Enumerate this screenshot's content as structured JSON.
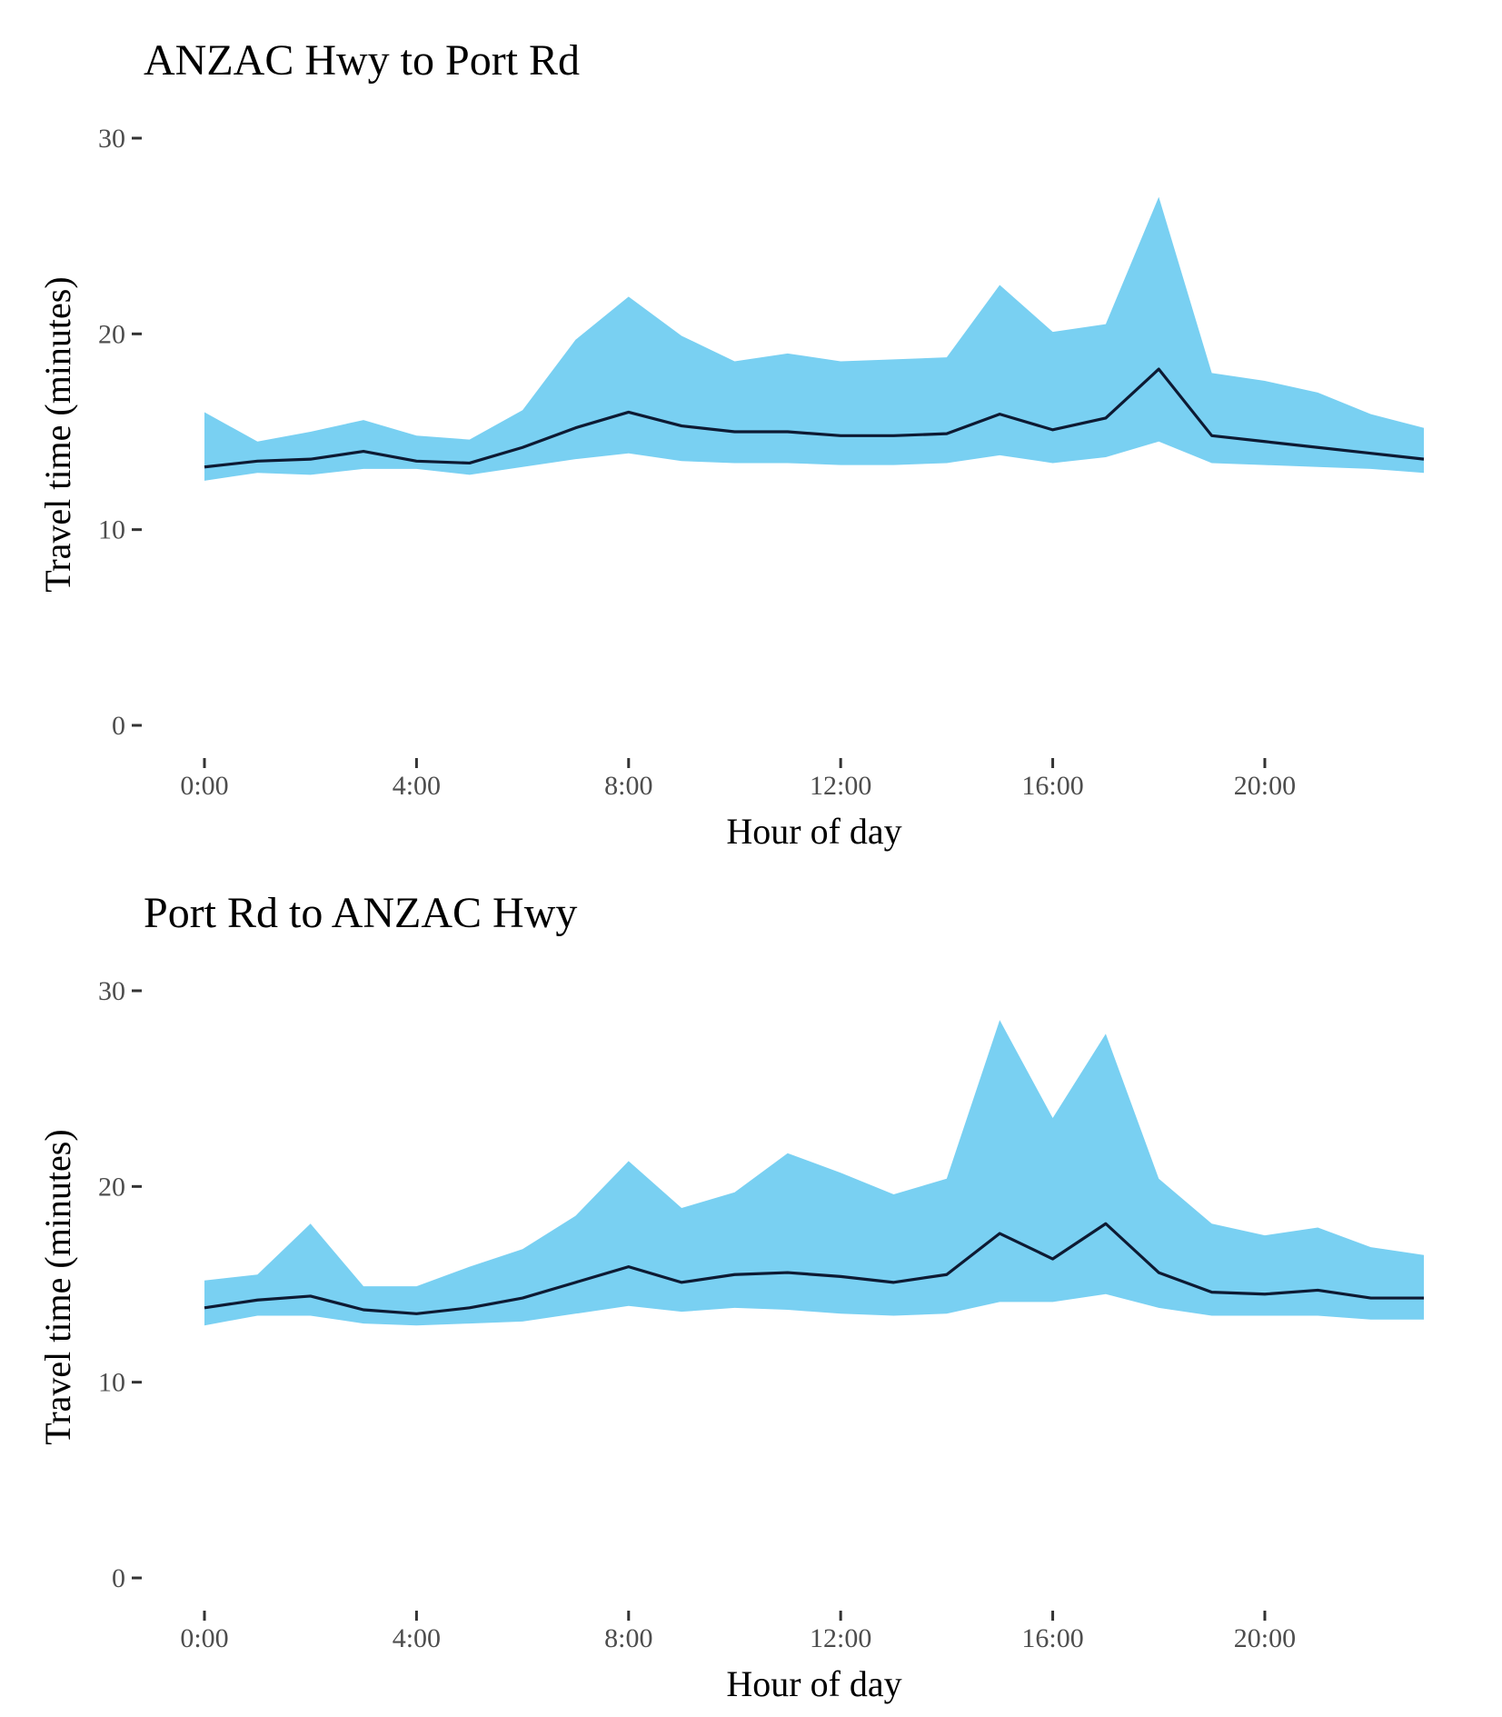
{
  "colors": {
    "band": "#79d0f2",
    "line": "#0d1a33",
    "text": "#000000",
    "tick_text": "#4d4d4d",
    "background": "#ffffff"
  },
  "chart_data": [
    {
      "type": "area",
      "title": "ANZAC Hwy to Port Rd",
      "xlabel": "Hour of day",
      "ylabel": "Travel time (minutes)",
      "x": [
        0,
        1,
        2,
        3,
        4,
        5,
        6,
        7,
        8,
        9,
        10,
        11,
        12,
        13,
        14,
        15,
        16,
        17,
        18,
        19,
        20,
        21,
        22,
        23
      ],
      "x_ticks": [
        0,
        4,
        8,
        12,
        16,
        20
      ],
      "x_tick_labels": [
        "0:00",
        "4:00",
        "8:00",
        "12:00",
        "16:00",
        "20:00"
      ],
      "xlim": [
        0,
        23
      ],
      "y_ticks": [
        0,
        10,
        20,
        30
      ],
      "y_tick_labels": [
        "0",
        "10",
        "20",
        "30"
      ],
      "ylim": [
        0,
        30
      ],
      "grid": false,
      "series": [
        {
          "role": "band_upper",
          "values": [
            16.0,
            14.5,
            15.0,
            15.6,
            14.8,
            14.6,
            16.1,
            19.7,
            21.9,
            19.9,
            18.6,
            19.0,
            18.6,
            18.7,
            18.8,
            22.5,
            20.1,
            20.5,
            27.0,
            18.0,
            17.6,
            17.0,
            15.9,
            15.2
          ]
        },
        {
          "role": "line",
          "values": [
            13.2,
            13.5,
            13.6,
            14.0,
            13.5,
            13.4,
            14.2,
            15.2,
            16.0,
            15.3,
            15.0,
            15.0,
            14.8,
            14.8,
            14.9,
            15.9,
            15.1,
            15.7,
            18.2,
            14.8,
            14.5,
            14.2,
            13.9,
            13.6
          ]
        },
        {
          "role": "band_lower",
          "values": [
            12.5,
            12.9,
            12.8,
            13.1,
            13.1,
            12.8,
            13.2,
            13.6,
            13.9,
            13.5,
            13.4,
            13.4,
            13.3,
            13.3,
            13.4,
            13.8,
            13.4,
            13.7,
            14.5,
            13.4,
            13.3,
            13.2,
            13.1,
            12.9
          ]
        }
      ]
    },
    {
      "type": "area",
      "title": "Port Rd to ANZAC Hwy",
      "xlabel": "Hour of day",
      "ylabel": "Travel time (minutes)",
      "x": [
        0,
        1,
        2,
        3,
        4,
        5,
        6,
        7,
        8,
        9,
        10,
        11,
        12,
        13,
        14,
        15,
        16,
        17,
        18,
        19,
        20,
        21,
        22,
        23
      ],
      "x_ticks": [
        0,
        4,
        8,
        12,
        16,
        20
      ],
      "x_tick_labels": [
        "0:00",
        "4:00",
        "8:00",
        "12:00",
        "16:00",
        "20:00"
      ],
      "xlim": [
        0,
        23
      ],
      "y_ticks": [
        0,
        10,
        20,
        30
      ],
      "y_tick_labels": [
        "0",
        "10",
        "20",
        "30"
      ],
      "ylim": [
        0,
        30
      ],
      "grid": false,
      "series": [
        {
          "role": "band_upper",
          "values": [
            15.2,
            15.5,
            18.1,
            14.9,
            14.9,
            15.9,
            16.8,
            18.5,
            21.3,
            18.9,
            19.7,
            21.7,
            20.7,
            19.6,
            20.4,
            28.5,
            23.5,
            27.8,
            20.4,
            18.1,
            17.5,
            17.9,
            16.9,
            16.5
          ]
        },
        {
          "role": "line",
          "values": [
            13.8,
            14.2,
            14.4,
            13.7,
            13.5,
            13.8,
            14.3,
            15.1,
            15.9,
            15.1,
            15.5,
            15.6,
            15.4,
            15.1,
            15.5,
            17.6,
            16.3,
            18.1,
            15.6,
            14.6,
            14.5,
            14.7,
            14.3,
            14.3
          ]
        },
        {
          "role": "band_lower",
          "values": [
            12.9,
            13.4,
            13.4,
            13.0,
            12.9,
            13.0,
            13.1,
            13.5,
            13.9,
            13.6,
            13.8,
            13.7,
            13.5,
            13.4,
            13.5,
            14.1,
            14.1,
            14.5,
            13.8,
            13.4,
            13.4,
            13.4,
            13.2,
            13.2
          ]
        }
      ]
    }
  ]
}
